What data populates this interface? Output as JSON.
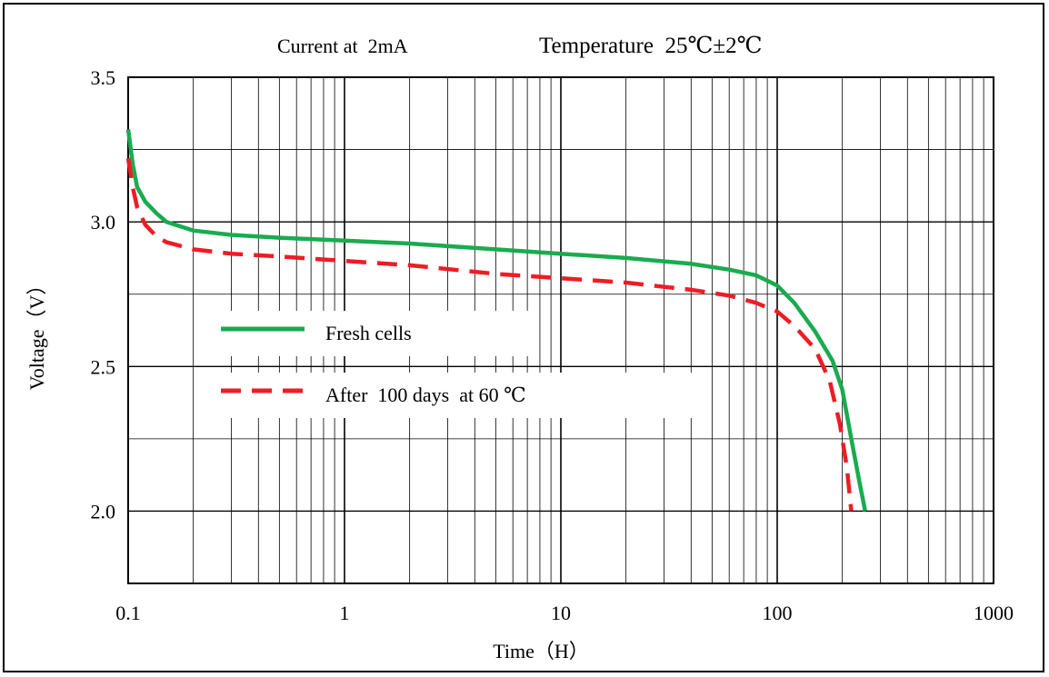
{
  "chart_data": {
    "type": "line",
    "title": "Current at  2mA",
    "subtitle": "Temperature  25℃±2℃",
    "xlabel": "Time（H）",
    "ylabel": "Voltage（V）",
    "xscale": "log",
    "xlim": [
      0.1,
      1000
    ],
    "ylim": [
      1.75,
      3.5
    ],
    "grid": true,
    "legend_position": "center-left",
    "x_ticks": [
      "0.1",
      "1",
      "10",
      "100",
      "1000"
    ],
    "y_ticks": [
      "3.5",
      "3.0",
      "2.5",
      "2.0"
    ],
    "series": [
      {
        "name": "Fresh    cells",
        "color": "#1aab4f",
        "dash": "solid",
        "points": [
          [
            0.1,
            3.32
          ],
          [
            0.105,
            3.2
          ],
          [
            0.11,
            3.12
          ],
          [
            0.12,
            3.07
          ],
          [
            0.135,
            3.03
          ],
          [
            0.15,
            3.0
          ],
          [
            0.2,
            2.97
          ],
          [
            0.3,
            2.955
          ],
          [
            0.5,
            2.945
          ],
          [
            1,
            2.935
          ],
          [
            2,
            2.925
          ],
          [
            5,
            2.905
          ],
          [
            10,
            2.89
          ],
          [
            20,
            2.875
          ],
          [
            40,
            2.855
          ],
          [
            60,
            2.835
          ],
          [
            80,
            2.815
          ],
          [
            100,
            2.78
          ],
          [
            120,
            2.72
          ],
          [
            150,
            2.62
          ],
          [
            180,
            2.52
          ],
          [
            200,
            2.42
          ],
          [
            220,
            2.25
          ],
          [
            240,
            2.1
          ],
          [
            255,
            2.0
          ]
        ]
      },
      {
        "name": "After  100 days  at 60 ℃",
        "color": "#ee1c24",
        "dash": "dashed",
        "points": [
          [
            0.1,
            3.22
          ],
          [
            0.105,
            3.12
          ],
          [
            0.11,
            3.05
          ],
          [
            0.12,
            2.99
          ],
          [
            0.135,
            2.95
          ],
          [
            0.15,
            2.93
          ],
          [
            0.2,
            2.905
          ],
          [
            0.3,
            2.89
          ],
          [
            0.5,
            2.88
          ],
          [
            1,
            2.865
          ],
          [
            2,
            2.85
          ],
          [
            5,
            2.82
          ],
          [
            10,
            2.805
          ],
          [
            20,
            2.79
          ],
          [
            40,
            2.765
          ],
          [
            60,
            2.745
          ],
          [
            80,
            2.72
          ],
          [
            100,
            2.69
          ],
          [
            120,
            2.64
          ],
          [
            150,
            2.56
          ],
          [
            175,
            2.45
          ],
          [
            195,
            2.3
          ],
          [
            210,
            2.15
          ],
          [
            220,
            2.0
          ]
        ]
      }
    ]
  }
}
